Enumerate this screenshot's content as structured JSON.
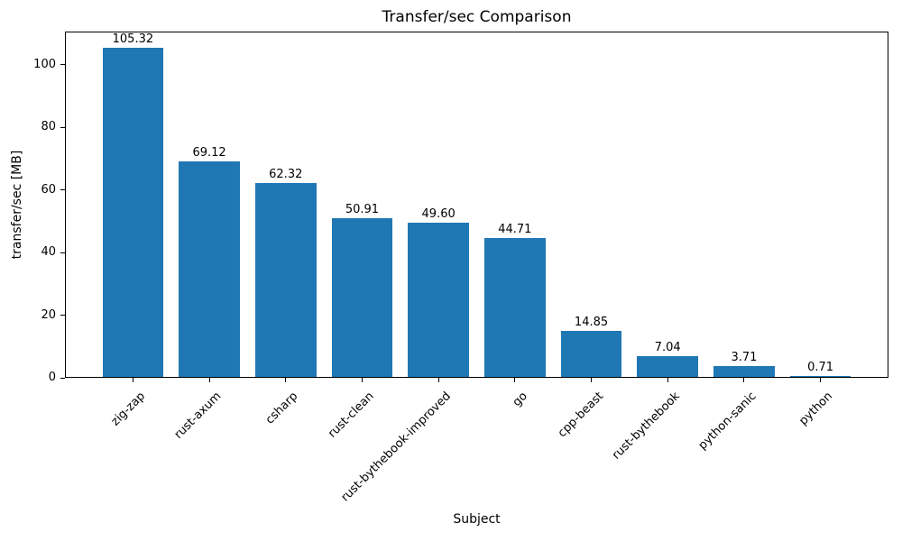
{
  "chart_data": {
    "type": "bar",
    "title": "Transfer/sec Comparison",
    "xlabel": "Subject",
    "ylabel": "transfer/sec [MB]",
    "categories": [
      "zig-zap",
      "rust-axum",
      "csharp",
      "rust-clean",
      "rust-bythebook-improved",
      "go",
      "cpp-beast",
      "rust-bythebook",
      "python-sanic",
      "python"
    ],
    "values": [
      105.32,
      69.12,
      62.32,
      50.91,
      49.6,
      44.71,
      14.85,
      7.04,
      3.71,
      0.71
    ],
    "value_labels": [
      "105.32",
      "69.12",
      "62.32",
      "50.91",
      "49.60",
      "44.71",
      "14.85",
      "7.04",
      "3.71",
      "0.71"
    ],
    "ylim": [
      0,
      110.6
    ],
    "yticks": [
      0,
      20,
      40,
      60,
      80,
      100
    ],
    "ytick_labels": [
      "0",
      "20",
      "40",
      "60",
      "80",
      "100"
    ],
    "bar_color": "#1f77b4",
    "text_color": "#000000",
    "grid": false,
    "legend": null,
    "xtick_rotation_deg": 45
  }
}
